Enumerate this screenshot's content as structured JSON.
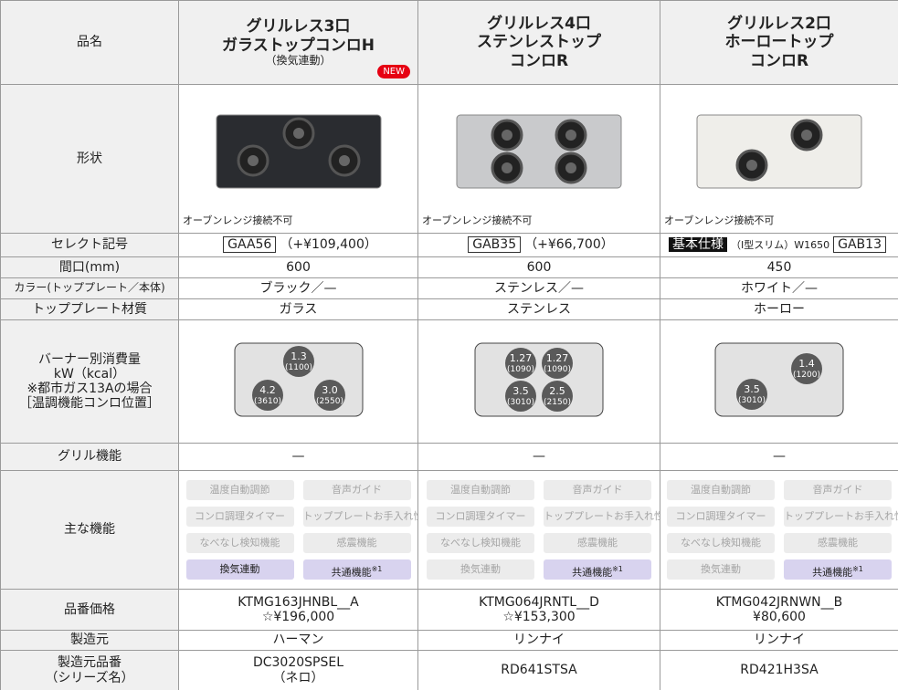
{
  "table": {
    "row_labels": {
      "name": "品名",
      "shape": "形状",
      "select": "セレクト記号",
      "width": "間口(mm)",
      "color": "カラー(トッププレート／本体)",
      "material": "トッププレート材質",
      "burner": [
        "バーナー別消費量",
        "kW（kcal）",
        "※都市ガス13Aの場合",
        "［温調機能コンロ位置］"
      ],
      "grill": "グリル機能",
      "features": "主な機能",
      "price": "品番価格",
      "maker": "製造元",
      "model": [
        "製造元品番",
        "（シリーズ名）"
      ]
    },
    "products": [
      {
        "name": [
          "グリルレス3口",
          "ガラストップコンロH"
        ],
        "sub": "（換気連動）",
        "badge": "NEW",
        "note": "オーブンレンジ接続不可",
        "select": {
          "code": "GAA56",
          "extra": "（+¥109,400）"
        },
        "width": "600",
        "color": "ブラック／—",
        "material": "ガラス",
        "burners": [
          {
            "kw": "1.3",
            "kcal": "(1100)"
          },
          {
            "kw": "4.2",
            "kcal": "(3610)"
          },
          {
            "kw": "3.0",
            "kcal": "(2550)"
          }
        ],
        "grill": "—",
        "features": [
          {
            "label": "温度自動調節",
            "active": false
          },
          {
            "label": "音声ガイド",
            "active": false
          },
          {
            "label": "コンロ調理タイマー",
            "active": false
          },
          {
            "label": "トッププレートお手入れ性",
            "active": false
          },
          {
            "label": "なべなし検知機能",
            "active": false
          },
          {
            "label": "感震機能",
            "active": false
          },
          {
            "label": "換気連動",
            "active": true
          },
          {
            "label": "共通機能",
            "note": "※1",
            "active": true
          }
        ],
        "price_code": "KTMG163JHNBL__A",
        "price": "☆¥196,000",
        "maker": "ハーマン",
        "model": [
          "DC3020SPSEL",
          "（ネロ）"
        ]
      },
      {
        "name": [
          "グリルレス4口",
          "ステンレストップ",
          "コンロR"
        ],
        "note": "オーブンレンジ接続不可",
        "select": {
          "code": "GAB35",
          "extra": "（+¥66,700）"
        },
        "width": "600",
        "color": "ステンレス／—",
        "material": "ステンレス",
        "burners": [
          {
            "kw": "1.27",
            "kcal": "(1090)"
          },
          {
            "kw": "1.27",
            "kcal": "(1090)"
          },
          {
            "kw": "3.5",
            "kcal": "(3010)"
          },
          {
            "kw": "2.5",
            "kcal": "(2150)"
          }
        ],
        "grill": "—",
        "features": [
          {
            "label": "温度自動調節",
            "active": false
          },
          {
            "label": "音声ガイド",
            "active": false
          },
          {
            "label": "コンロ調理タイマー",
            "active": false
          },
          {
            "label": "トッププレートお手入れ性",
            "active": false
          },
          {
            "label": "なべなし検知機能",
            "active": false
          },
          {
            "label": "感震機能",
            "active": false
          },
          {
            "label": "換気連動",
            "active": false
          },
          {
            "label": "共通機能",
            "note": "※1",
            "active": true
          }
        ],
        "price_code": "KTMG064JRNTL__D",
        "price": "☆¥153,300",
        "maker": "リンナイ",
        "model": [
          "RD641STSA"
        ]
      },
      {
        "name": [
          "グリルレス2口",
          "ホーロートップ",
          "コンロR"
        ],
        "note": "オーブンレンジ接続不可",
        "select": {
          "tag": "基本仕様",
          "extra": "（I型スリム）W1650",
          "code": "GAB13"
        },
        "width": "450",
        "color": "ホワイト／—",
        "material": "ホーロー",
        "burners": [
          {
            "kw": "1.4",
            "kcal": "(1200)"
          },
          {
            "kw": "3.5",
            "kcal": "(3010)"
          }
        ],
        "grill": "—",
        "features": [
          {
            "label": "温度自動調節",
            "active": false
          },
          {
            "label": "音声ガイド",
            "active": false
          },
          {
            "label": "コンロ調理タイマー",
            "active": false
          },
          {
            "label": "トッププレートお手入れ性",
            "active": false
          },
          {
            "label": "なべなし検知機能",
            "active": false
          },
          {
            "label": "感震機能",
            "active": false
          },
          {
            "label": "換気連動",
            "active": false
          },
          {
            "label": "共通機能",
            "note": "※1",
            "active": true
          }
        ],
        "price_code": "KTMG042JRNWN__B",
        "price": "¥80,600",
        "maker": "リンナイ",
        "model": [
          "RD421H3SA"
        ]
      }
    ]
  }
}
